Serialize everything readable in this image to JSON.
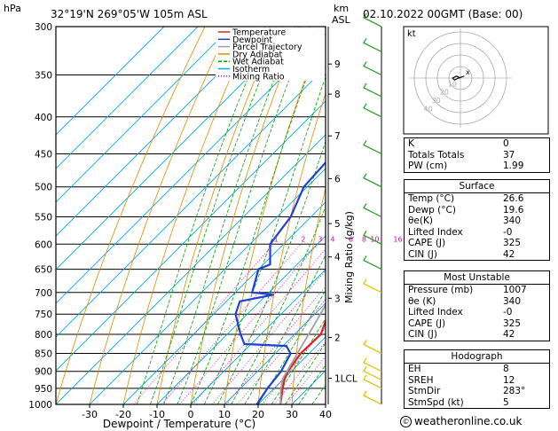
{
  "header": {
    "hpa_label": "hPa",
    "location": "32°19'N  269°05'W  105m  ASL",
    "km_label": "km",
    "asl_label": "ASL",
    "datetime": "02.10.2022  00GMT  (Base: 00)"
  },
  "chart_data": {
    "type": "skew-t log-p",
    "xlabel": "Dewpoint / Temperature (°C)",
    "ylabel_left": "hPa",
    "ylabel_right": "Mixing Ratio (g/kg)",
    "x_ticks": [
      -30,
      -20,
      -10,
      0,
      10,
      20,
      30,
      40
    ],
    "xlim": [
      -40,
      40
    ],
    "pressure_levels": [
      300,
      350,
      400,
      450,
      500,
      550,
      600,
      650,
      700,
      750,
      800,
      850,
      900,
      950,
      1000
    ],
    "ylim": [
      1000,
      300
    ],
    "km_ticks": [
      {
        "label": "9",
        "p": 338
      },
      {
        "label": "8",
        "p": 372
      },
      {
        "label": "7",
        "p": 425
      },
      {
        "label": "6",
        "p": 487
      },
      {
        "label": "5",
        "p": 562
      },
      {
        "label": "4",
        "p": 625
      },
      {
        "label": "3",
        "p": 713
      },
      {
        "label": "2",
        "p": 808
      },
      {
        "label": "1LCL",
        "p": 920
      }
    ],
    "mixing_ratio_labels": [
      "1",
      "2",
      "3",
      "4",
      "6",
      "8",
      "10",
      "16",
      "20",
      "25"
    ],
    "mixing_ratio_values": [
      1,
      2,
      3,
      4,
      6,
      8,
      10,
      16,
      20,
      25
    ],
    "legend": [
      "Temperature",
      "Dewpoint",
      "Parcel Trajectory",
      "Dry Adiabat",
      "Wet Adiabat",
      "Isotherm",
      "Mixing Ratio"
    ],
    "colors": {
      "temperature": "#e02020",
      "dewpoint": "#1f3fd6",
      "parcel": "#a0a0a0",
      "dry_adiabat": "#e08a00",
      "wet_adiabat": "#00a000",
      "isotherm": "#00a6e0",
      "mixing_ratio": "#e0009a"
    },
    "series": [
      {
        "name": "Temperature",
        "points": [
          {
            "p": 1000,
            "t": 26.6
          },
          {
            "p": 950,
            "t": 22.5
          },
          {
            "p": 925,
            "t": 20.5
          },
          {
            "p": 900,
            "t": 19.0
          },
          {
            "p": 850,
            "t": 17.5
          },
          {
            "p": 800,
            "t": 17.8
          },
          {
            "p": 750,
            "t": 14.0
          },
          {
            "p": 700,
            "t": 10.0
          },
          {
            "p": 650,
            "t": 6.0
          },
          {
            "p": 600,
            "t": 2.0
          },
          {
            "p": 550,
            "t": -2.5
          },
          {
            "p": 500,
            "t": -6.5
          },
          {
            "p": 450,
            "t": -11.5
          },
          {
            "p": 400,
            "t": -17.0
          },
          {
            "p": 350,
            "t": -24.0
          },
          {
            "p": 300,
            "t": -32.0
          }
        ]
      },
      {
        "name": "Dewpoint",
        "points": [
          {
            "p": 1000,
            "t": 19.6
          },
          {
            "p": 950,
            "t": 18.0
          },
          {
            "p": 900,
            "t": 17.0
          },
          {
            "p": 850,
            "t": 14.5
          },
          {
            "p": 830,
            "t": 11.0
          },
          {
            "p": 825,
            "t": -2.0
          },
          {
            "p": 800,
            "t": -6.0
          },
          {
            "p": 750,
            "t": -13.5
          },
          {
            "p": 720,
            "t": -16.0
          },
          {
            "p": 705,
            "t": -8.0
          },
          {
            "p": 700,
            "t": -15.0
          },
          {
            "p": 650,
            "t": -20.0
          },
          {
            "p": 640,
            "t": -18.0
          },
          {
            "p": 600,
            "t": -24.0
          },
          {
            "p": 550,
            "t": -26.0
          },
          {
            "p": 500,
            "t": -31.0
          },
          {
            "p": 450,
            "t": -32.0
          },
          {
            "p": 400,
            "t": -36.0
          },
          {
            "p": 385,
            "t": -39.0
          },
          {
            "p": 383,
            "t": -22.0
          },
          {
            "p": 355,
            "t": -22.0
          },
          {
            "p": 345,
            "t": -40.0
          },
          {
            "p": 320,
            "t": -44.0
          },
          {
            "p": 313,
            "t": -38.0
          },
          {
            "p": 305,
            "t": -42.0
          },
          {
            "p": 300,
            "t": -43.0
          }
        ]
      },
      {
        "name": "Parcel Trajectory",
        "points": [
          {
            "p": 1000,
            "t": 26.6
          },
          {
            "p": 950,
            "t": 22.0
          },
          {
            "p": 920,
            "t": 19.6
          },
          {
            "p": 850,
            "t": 16.5
          },
          {
            "p": 800,
            "t": 14.2
          },
          {
            "p": 700,
            "t": 9.0
          },
          {
            "p": 600,
            "t": 2.3
          },
          {
            "p": 500,
            "t": -6.0
          },
          {
            "p": 400,
            "t": -16.0
          },
          {
            "p": 300,
            "t": -29.0
          }
        ]
      }
    ]
  },
  "hodograph": {
    "label": "kt",
    "ring_labels": [
      "10",
      "20",
      "30",
      "40"
    ],
    "points": [
      {
        "u": 0,
        "v": 0
      },
      {
        "u": -2,
        "v": 1
      },
      {
        "u": -4,
        "v": 0
      },
      {
        "u": -3,
        "v": -1
      },
      {
        "u": -1,
        "v": 0
      },
      {
        "u": 2,
        "v": 1
      }
    ],
    "storm_motion_label": "x"
  },
  "indices": {
    "rows": [
      {
        "label": "K",
        "value": "0"
      },
      {
        "label": "Totals Totals",
        "value": "37"
      },
      {
        "label": "PW (cm)",
        "value": "1.99"
      }
    ]
  },
  "surface": {
    "title": "Surface",
    "rows": [
      {
        "label": "Temp (°C)",
        "value": "26.6"
      },
      {
        "label": "Dewp (°C)",
        "value": "19.6"
      },
      {
        "label": "θe(K)",
        "value": "340"
      },
      {
        "label": "Lifted Index",
        "value": "-0"
      },
      {
        "label": "CAPE (J)",
        "value": "325"
      },
      {
        "label": "CIN (J)",
        "value": "42"
      }
    ]
  },
  "most_unstable": {
    "title": "Most Unstable",
    "rows": [
      {
        "label": "Pressure (mb)",
        "value": "1007"
      },
      {
        "label": "θe (K)",
        "value": "340"
      },
      {
        "label": "Lifted Index",
        "value": "-0"
      },
      {
        "label": "CAPE (J)",
        "value": "325"
      },
      {
        "label": "CIN (J)",
        "value": "42"
      }
    ]
  },
  "hodograph_table": {
    "title": "Hodograph",
    "rows": [
      {
        "label": "EH",
        "value": "8"
      },
      {
        "label": "SREH",
        "value": "12"
      },
      {
        "label": "StmDir",
        "value": "283°"
      },
      {
        "label": "StmSpd (kt)",
        "value": "5"
      }
    ]
  },
  "footer": {
    "text": "weatheronline.co.uk",
    "icon": "copyright-icon",
    "icon_glyph": "©"
  },
  "wind_barbs": {
    "levels": [
      300,
      325,
      350,
      375,
      400,
      450,
      500,
      550,
      600,
      650,
      700,
      850,
      900,
      925,
      950,
      1000
    ],
    "colors": {
      "upper": "#2ea02e",
      "lower": "#e6c200"
    }
  }
}
